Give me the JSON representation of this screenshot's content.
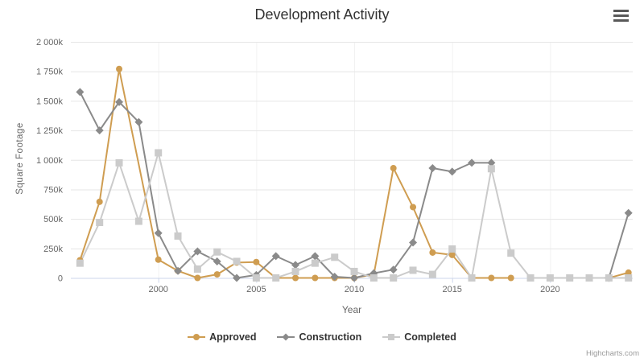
{
  "ui": {
    "credits": "Highcharts.com"
  },
  "chart_data": {
    "type": "line",
    "title": "Development Activity",
    "xlabel": "Year",
    "ylabel": "Square Footage",
    "x_tick_values": [
      2000,
      2005,
      2010,
      2015,
      2020
    ],
    "x_tick_labels": [
      "2000",
      "2005",
      "2010",
      "2015",
      "2020"
    ],
    "y_tick_values": [
      0,
      250,
      500,
      750,
      1000,
      1250,
      1500,
      1750,
      2000
    ],
    "y_tick_labels": [
      "0",
      "250k",
      "500k",
      "750k",
      "1 000k",
      "1 250k",
      "1 500k",
      "1 750k",
      "2 000k"
    ],
    "xlim": [
      1996,
      2024
    ],
    "ylim": [
      0,
      2000
    ],
    "y_unit": "thousands of square feet",
    "grid": true,
    "legend_position": "bottom",
    "series": [
      {
        "name": "Approved",
        "color": "#cf9d51",
        "marker": "circle",
        "points": [
          [
            1996,
            150
          ],
          [
            1997,
            645
          ],
          [
            1998,
            1770
          ],
          [
            2000,
            155
          ],
          [
            2001,
            60
          ],
          [
            2002,
            0
          ],
          [
            2003,
            30
          ],
          [
            2004,
            130
          ],
          [
            2005,
            135
          ],
          [
            2006,
            0
          ],
          [
            2007,
            0
          ],
          [
            2008,
            0
          ],
          [
            2009,
            0
          ],
          [
            2010,
            0
          ],
          [
            2011,
            30
          ],
          [
            2012,
            930
          ],
          [
            2013,
            600
          ],
          [
            2014,
            215
          ],
          [
            2015,
            195
          ],
          [
            2016,
            0
          ],
          [
            2017,
            0
          ],
          [
            2018,
            0
          ],
          [
            2019,
            null
          ],
          [
            2023,
            0
          ],
          [
            2024,
            45
          ]
        ]
      },
      {
        "name": "Construction",
        "color": "#8a8a8a",
        "marker": "diamond",
        "points": [
          [
            1996,
            1575
          ],
          [
            1997,
            1250
          ],
          [
            1998,
            1490
          ],
          [
            1999,
            1320
          ],
          [
            2000,
            380
          ],
          [
            2001,
            60
          ],
          [
            2002,
            225
          ],
          [
            2003,
            140
          ],
          [
            2004,
            0
          ],
          [
            2005,
            25
          ],
          [
            2006,
            185
          ],
          [
            2007,
            110
          ],
          [
            2008,
            185
          ],
          [
            2009,
            10
          ],
          [
            2010,
            0
          ],
          [
            2011,
            40
          ],
          [
            2012,
            70
          ],
          [
            2013,
            300
          ],
          [
            2014,
            930
          ],
          [
            2015,
            900
          ],
          [
            2016,
            975
          ],
          [
            2017,
            975
          ],
          [
            2018,
            null
          ],
          [
            2023,
            0
          ],
          [
            2024,
            550
          ]
        ]
      },
      {
        "name": "Completed",
        "color": "#cbcbcb",
        "marker": "square",
        "points": [
          [
            1996,
            125
          ],
          [
            1997,
            470
          ],
          [
            1998,
            975
          ],
          [
            1999,
            480
          ],
          [
            2000,
            1060
          ],
          [
            2001,
            355
          ],
          [
            2002,
            75
          ],
          [
            2003,
            220
          ],
          [
            2004,
            140
          ],
          [
            2005,
            0
          ],
          [
            2006,
            0
          ],
          [
            2007,
            55
          ],
          [
            2008,
            125
          ],
          [
            2009,
            175
          ],
          [
            2010,
            55
          ],
          [
            2011,
            0
          ],
          [
            2012,
            0
          ],
          [
            2013,
            65
          ],
          [
            2014,
            30
          ],
          [
            2015,
            245
          ],
          [
            2016,
            0
          ],
          [
            2017,
            925
          ],
          [
            2018,
            210
          ],
          [
            2019,
            0
          ],
          [
            2020,
            0
          ],
          [
            2021,
            0
          ],
          [
            2022,
            0
          ],
          [
            2023,
            0
          ],
          [
            2024,
            0
          ]
        ]
      }
    ]
  }
}
